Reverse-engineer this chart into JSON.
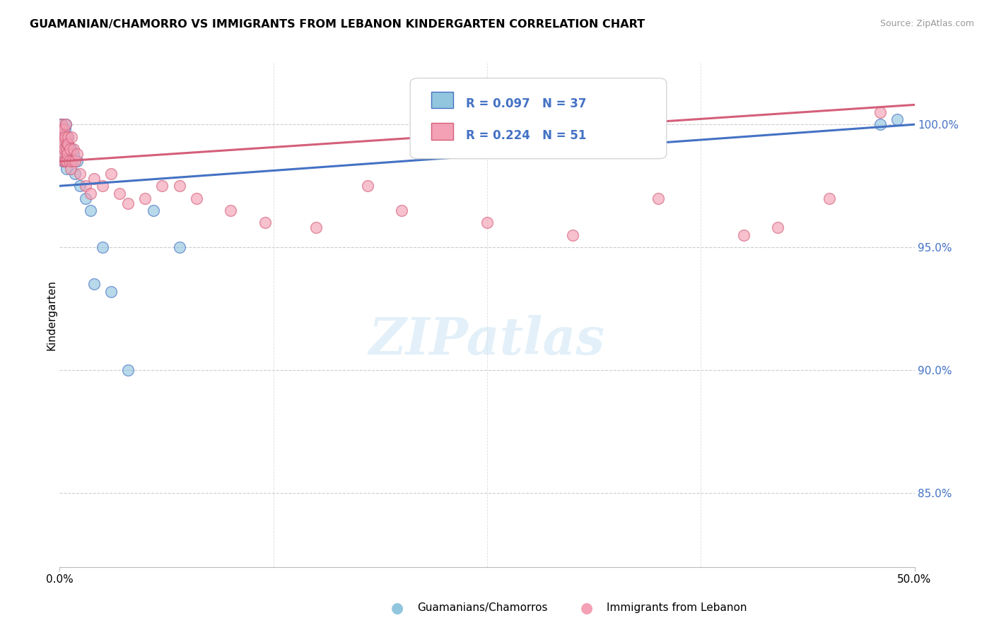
{
  "title": "GUAMANIAN/CHAMORRO VS IMMIGRANTS FROM LEBANON KINDERGARTEN CORRELATION CHART",
  "source": "Source: ZipAtlas.com",
  "ylabel": "Kindergarten",
  "xlim": [
    0.0,
    50.0
  ],
  "ylim": [
    82.0,
    102.5
  ],
  "ytick_labels": [
    "85.0%",
    "90.0%",
    "95.0%",
    "100.0%"
  ],
  "ytick_values": [
    85.0,
    90.0,
    95.0,
    100.0
  ],
  "blue_color": "#92c5de",
  "pink_color": "#f4a0b5",
  "blue_edge_color": "#4472c4",
  "pink_edge_color": "#d45f7a",
  "blue_trend_color": "#4472c4",
  "pink_trend_color": "#d45f7a",
  "watermark": "ZIPatlas",
  "legend1_r": "0.097",
  "legend1_n": "37",
  "legend2_r": "0.224",
  "legend2_n": "51",
  "series_blue_x": [
    0.05,
    0.08,
    0.1,
    0.12,
    0.15,
    0.18,
    0.2,
    0.22,
    0.25,
    0.28,
    0.3,
    0.32,
    0.35,
    0.38,
    0.4,
    0.42,
    0.45,
    0.48,
    0.5,
    0.55,
    0.6,
    0.65,
    0.7,
    0.8,
    0.9,
    1.0,
    1.2,
    1.5,
    1.8,
    2.0,
    2.5,
    3.0,
    4.0,
    5.5,
    7.0,
    48.0,
    49.0
  ],
  "series_blue_y": [
    99.8,
    100.0,
    99.5,
    100.0,
    99.0,
    98.5,
    99.2,
    98.8,
    99.5,
    99.0,
    98.5,
    99.8,
    100.0,
    99.5,
    98.2,
    99.0,
    98.8,
    99.5,
    99.2,
    98.5,
    99.0,
    98.5,
    99.0,
    98.8,
    98.0,
    98.5,
    97.5,
    97.0,
    96.5,
    93.5,
    95.0,
    93.2,
    90.0,
    96.5,
    95.0,
    100.0,
    100.2
  ],
  "series_pink_x": [
    0.05,
    0.07,
    0.1,
    0.12,
    0.15,
    0.18,
    0.2,
    0.22,
    0.25,
    0.28,
    0.3,
    0.32,
    0.35,
    0.38,
    0.4,
    0.42,
    0.45,
    0.48,
    0.5,
    0.55,
    0.6,
    0.65,
    0.7,
    0.75,
    0.8,
    0.9,
    1.0,
    1.2,
    1.5,
    1.8,
    2.0,
    2.5,
    3.0,
    3.5,
    4.0,
    5.0,
    6.0,
    7.0,
    8.0,
    10.0,
    12.0,
    15.0,
    18.0,
    20.0,
    25.0,
    30.0,
    35.0,
    40.0,
    42.0,
    45.0,
    48.0
  ],
  "series_pink_y": [
    99.5,
    99.8,
    100.0,
    99.0,
    99.5,
    98.8,
    99.2,
    98.5,
    99.8,
    99.0,
    98.5,
    99.5,
    100.0,
    99.0,
    98.5,
    99.2,
    98.8,
    99.5,
    99.2,
    98.5,
    99.0,
    98.2,
    99.5,
    98.5,
    99.0,
    98.5,
    98.8,
    98.0,
    97.5,
    97.2,
    97.8,
    97.5,
    98.0,
    97.2,
    96.8,
    97.0,
    97.5,
    97.5,
    97.0,
    96.5,
    96.0,
    95.8,
    97.5,
    96.5,
    96.0,
    95.5,
    97.0,
    95.5,
    95.8,
    97.0,
    100.5
  ]
}
